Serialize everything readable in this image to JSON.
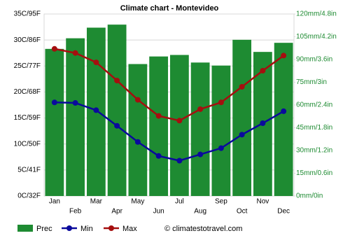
{
  "chart_data": {
    "type": "bar",
    "title": "Climate chart - Montevideo",
    "categories": [
      "Jan",
      "Feb",
      "Mar",
      "Apr",
      "May",
      "Jun",
      "Jul",
      "Aug",
      "Sep",
      "Oct",
      "Nov",
      "Dec"
    ],
    "series": [
      {
        "name": "Prec",
        "type": "bar",
        "axis": "y2",
        "color": "#1e8b32",
        "values": [
          97,
          104,
          111,
          113,
          87,
          92,
          93,
          88,
          86,
          103,
          95,
          101
        ]
      },
      {
        "name": "Min",
        "type": "line",
        "color": "#0a0a9c",
        "values": [
          18,
          17.9,
          16.5,
          13.5,
          10.4,
          7.7,
          6.8,
          8,
          9.2,
          11.8,
          14,
          16.3
        ]
      },
      {
        "name": "Max",
        "type": "line",
        "color": "#a50f0f",
        "values": [
          28.3,
          27.5,
          25.7,
          22.2,
          18.5,
          15.4,
          14.5,
          16.7,
          18,
          21,
          24.1,
          27
        ]
      }
    ],
    "ylim": [
      0,
      35
    ],
    "yticks": [
      {
        "value": 0,
        "label": "0C/32F"
      },
      {
        "value": 5,
        "label": "5C/41F"
      },
      {
        "value": 10,
        "label": "10C/50F"
      },
      {
        "value": 15,
        "label": "15C/59F"
      },
      {
        "value": 20,
        "label": "20C/68F"
      },
      {
        "value": 25,
        "label": "25C/77F"
      },
      {
        "value": 30,
        "label": "30C/86F"
      },
      {
        "value": 35,
        "label": "35C/95F"
      }
    ],
    "y2lim": [
      0,
      120
    ],
    "y2ticks": [
      {
        "value": 0,
        "label": "0mm/0in"
      },
      {
        "value": 15,
        "label": "15mm/0.6in"
      },
      {
        "value": 30,
        "label": "30mm/1.2in"
      },
      {
        "value": 45,
        "label": "45mm/1.8in"
      },
      {
        "value": 60,
        "label": "60mm/2.4in"
      },
      {
        "value": 75,
        "label": "75mm/3in"
      },
      {
        "value": 90,
        "label": "90mm/3.6in"
      },
      {
        "value": 105,
        "label": "105mm/4.2in"
      },
      {
        "value": 120,
        "label": "120mm/4.8in"
      }
    ],
    "y2_color": "#1e8b32",
    "grid": true,
    "credit": "© climatestotravel.com"
  }
}
